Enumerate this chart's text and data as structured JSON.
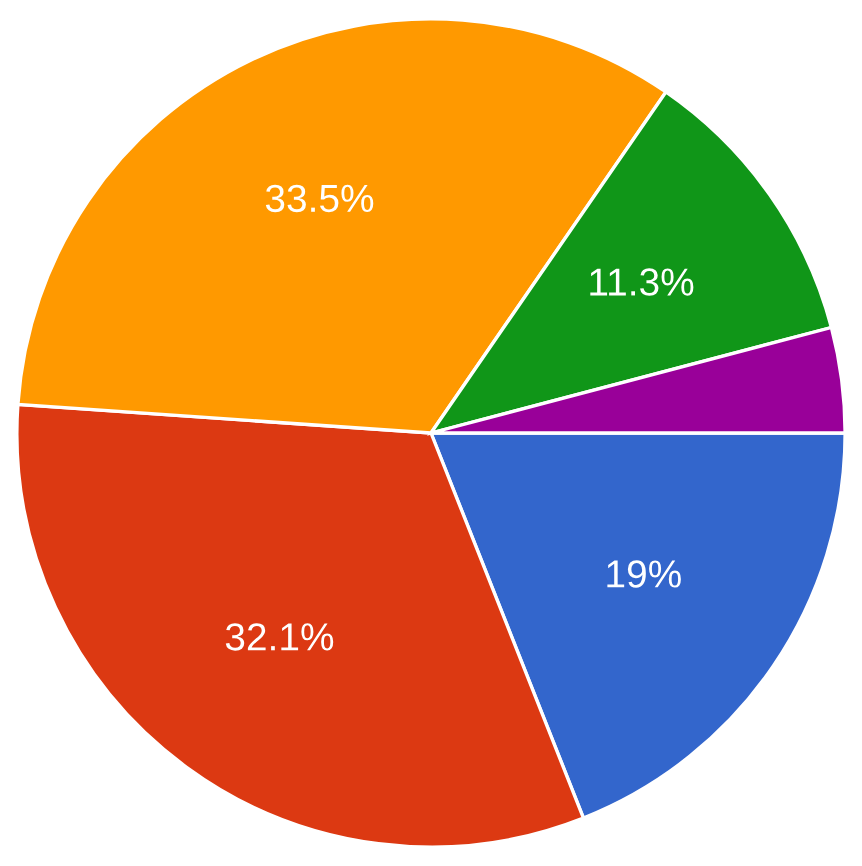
{
  "chart_data": {
    "type": "pie",
    "categories": [
      null,
      null,
      null,
      null,
      null
    ],
    "values": [
      19,
      32.1,
      33.5,
      11.3,
      4.1
    ],
    "colors": [
      "#3366cc",
      "#dc3912",
      "#ff9900",
      "#109618",
      "#990099"
    ],
    "value_labels": [
      "19%",
      "32.1%",
      "33.5%",
      "11.3%",
      null
    ]
  }
}
